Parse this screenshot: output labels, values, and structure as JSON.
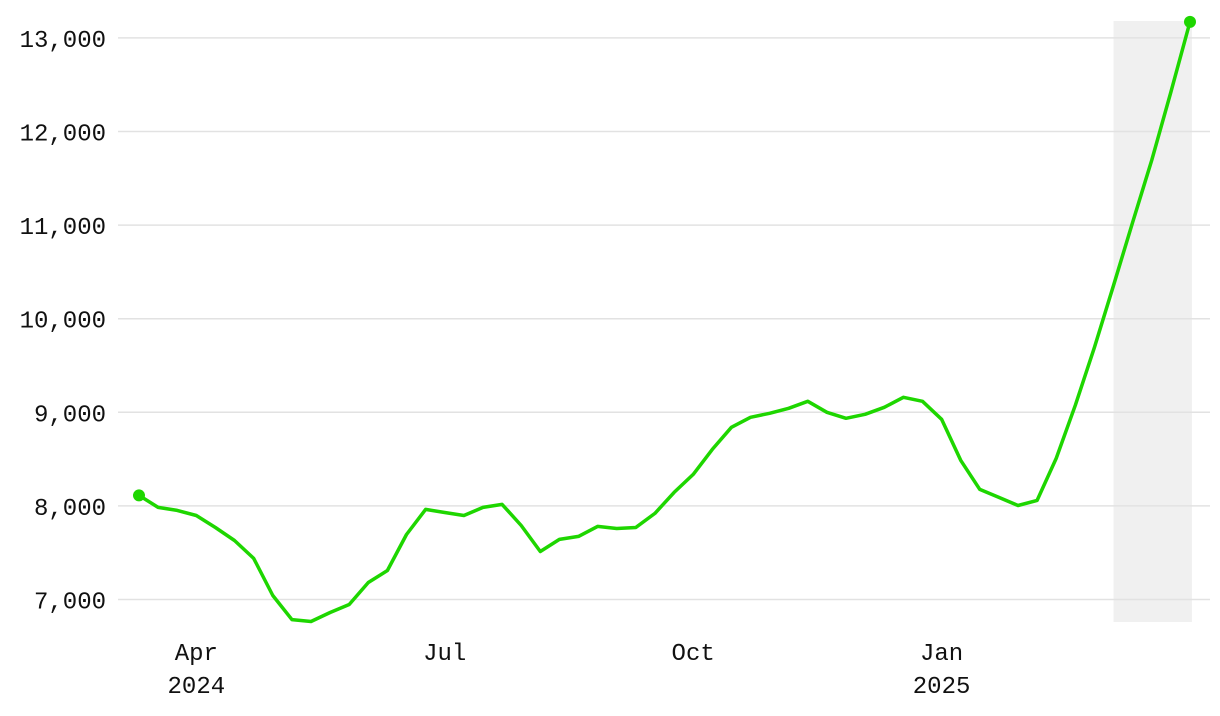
{
  "chart_data": {
    "type": "line",
    "categories": [
      null,
      null,
      null,
      "Apr 2024",
      null,
      null,
      null,
      null,
      null,
      null,
      null,
      null,
      null,
      null,
      null,
      null,
      "Jul",
      null,
      null,
      null,
      null,
      null,
      null,
      null,
      null,
      null,
      null,
      null,
      null,
      "Oct",
      null,
      null,
      null,
      null,
      null,
      null,
      null,
      null,
      null,
      null,
      null,
      null,
      "Jan 2025",
      null,
      null,
      null,
      null,
      null,
      null,
      null,
      null,
      null,
      null,
      null,
      null,
      null
    ],
    "series": [
      {
        "color": "#1ed600",
        "values": [
          8112,
          7984,
          7952,
          7898,
          7770,
          7631,
          7439,
          7043,
          6786,
          6765,
          6861,
          6947,
          7182,
          7310,
          7695,
          7963,
          7930,
          7898,
          7984,
          8016,
          7791,
          7513,
          7642,
          7674,
          7781,
          7759,
          7770,
          7920,
          8144,
          8337,
          8604,
          8840,
          8947,
          8989,
          9043,
          9118,
          9000,
          8936,
          8979,
          9053,
          9160,
          9118,
          8925,
          8487,
          8176,
          8091,
          8005,
          8059,
          8508,
          9075,
          9695,
          10358,
          11032,
          11695,
          12422,
          13171
        ]
      }
    ],
    "ylim": [
      6760,
      13180
    ],
    "yticks": [
      {
        "value": 7000,
        "label": "7,000"
      },
      {
        "value": 8000,
        "label": "8,000"
      },
      {
        "value": 9000,
        "label": "9,000"
      },
      {
        "value": 10000,
        "label": "10,000"
      },
      {
        "value": 11000,
        "label": "11,000"
      },
      {
        "value": 12000,
        "label": "12,000"
      },
      {
        "value": 13000,
        "label": "13,000"
      }
    ],
    "grid": true,
    "highlight": {
      "start_index": 51,
      "end_index": 55,
      "color": "#f0f0f0"
    }
  }
}
